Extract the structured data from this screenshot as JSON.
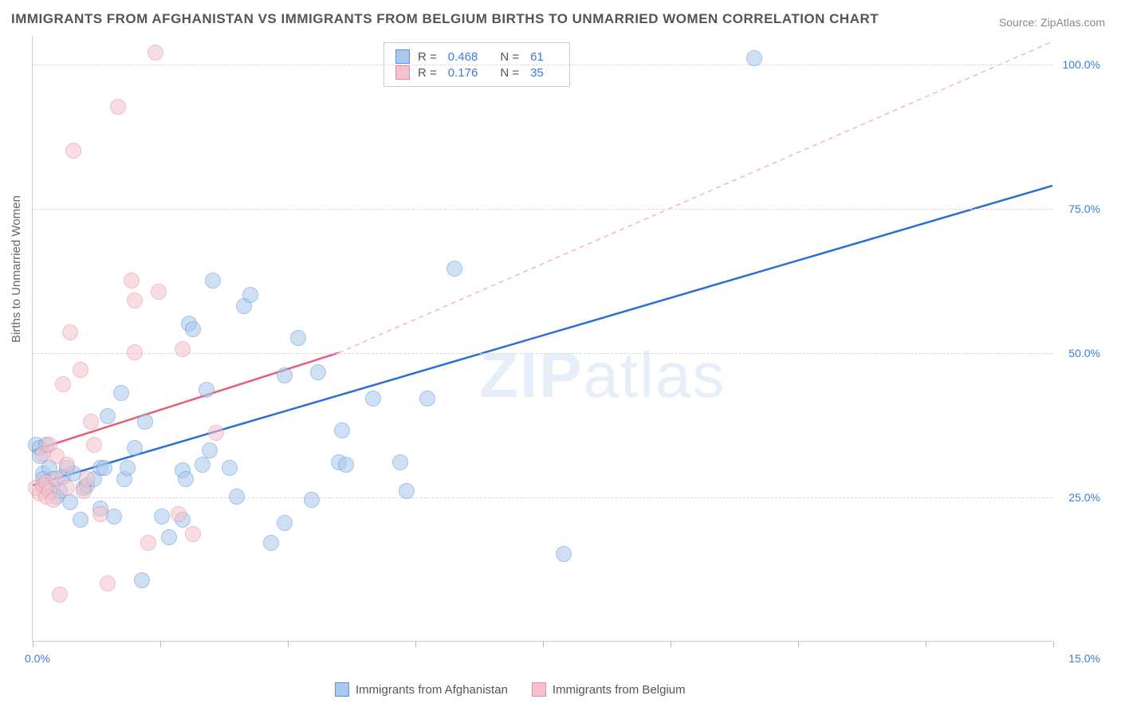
{
  "title": "IMMIGRANTS FROM AFGHANISTAN VS IMMIGRANTS FROM BELGIUM BIRTHS TO UNMARRIED WOMEN CORRELATION CHART",
  "source_label": "Source:",
  "source_value": "ZipAtlas.com",
  "ylabel": "Births to Unmarried Women",
  "watermark_bold": "ZIP",
  "watermark_rest": "atlas",
  "chart": {
    "type": "scatter",
    "xlim": [
      0,
      15
    ],
    "ylim": [
      0,
      105
    ],
    "x_ticks_pct": [
      0,
      12.5,
      25,
      37.5,
      50,
      62.5,
      75,
      87.5,
      100
    ],
    "y_gridlines": [
      25,
      50,
      75,
      100
    ],
    "y_tick_labels": [
      "25.0%",
      "50.0%",
      "75.0%",
      "100.0%"
    ],
    "x_min_label": "0.0%",
    "x_max_label": "15.0%",
    "background_color": "#ffffff",
    "grid_color": "#d8d8d8",
    "axis_label_color": "#3b7dd8",
    "point_radius": 10,
    "series": [
      {
        "name": "Immigrants from Afghanistan",
        "fill": "#a8c8ec",
        "stroke": "#5a94d8",
        "fill_opacity": 0.55,
        "R": "0.468",
        "N": "61",
        "trend": {
          "x1": 0,
          "y1": 27,
          "x2": 15,
          "y2": 79,
          "stroke": "#2a6fd6",
          "width": 2.5,
          "dash": "none"
        },
        "trend_ext": {
          "x1": 4.5,
          "y1": 50,
          "x2": 15,
          "y2": 104,
          "stroke": "#f4b6c2",
          "width": 1.5,
          "dash": "6,5"
        },
        "points": [
          [
            0.05,
            34
          ],
          [
            0.1,
            33.5
          ],
          [
            0.1,
            32
          ],
          [
            0.15,
            29
          ],
          [
            0.15,
            28
          ],
          [
            0.2,
            26.5
          ],
          [
            0.2,
            34
          ],
          [
            0.25,
            30
          ],
          [
            0.3,
            28
          ],
          [
            0.35,
            25
          ],
          [
            0.4,
            26
          ],
          [
            0.45,
            28.5
          ],
          [
            0.5,
            30
          ],
          [
            0.55,
            24
          ],
          [
            0.6,
            29
          ],
          [
            0.7,
            21
          ],
          [
            0.75,
            26.5
          ],
          [
            0.8,
            27
          ],
          [
            0.9,
            28
          ],
          [
            1.0,
            23
          ],
          [
            1.0,
            30
          ],
          [
            1.05,
            30
          ],
          [
            1.1,
            39
          ],
          [
            1.2,
            21.5
          ],
          [
            1.3,
            43
          ],
          [
            1.35,
            28
          ],
          [
            1.4,
            30
          ],
          [
            1.5,
            33.5
          ],
          [
            1.6,
            10.5
          ],
          [
            1.65,
            38
          ],
          [
            1.9,
            21.5
          ],
          [
            2.0,
            18
          ],
          [
            2.2,
            29.5
          ],
          [
            2.2,
            21
          ],
          [
            2.25,
            28
          ],
          [
            2.3,
            55
          ],
          [
            2.35,
            54
          ],
          [
            2.5,
            30.5
          ],
          [
            2.55,
            43.5
          ],
          [
            2.6,
            33
          ],
          [
            2.65,
            62.5
          ],
          [
            2.9,
            30
          ],
          [
            3.0,
            25
          ],
          [
            3.1,
            58
          ],
          [
            3.2,
            60
          ],
          [
            3.5,
            17
          ],
          [
            3.7,
            46
          ],
          [
            3.7,
            20.5
          ],
          [
            3.9,
            52.5
          ],
          [
            4.1,
            24.5
          ],
          [
            4.2,
            46.5
          ],
          [
            4.5,
            31
          ],
          [
            4.55,
            36.5
          ],
          [
            4.6,
            30.5
          ],
          [
            5.0,
            42
          ],
          [
            5.4,
            31
          ],
          [
            5.5,
            26
          ],
          [
            5.8,
            42
          ],
          [
            6.2,
            64.5
          ],
          [
            7.8,
            15
          ],
          [
            10.6,
            101
          ]
        ]
      },
      {
        "name": "Immigrants from Belgium",
        "fill": "#f4c2cc",
        "stroke": "#e88ba0",
        "fill_opacity": 0.55,
        "R": "0.176",
        "N": "35",
        "trend": {
          "x1": 0,
          "y1": 33,
          "x2": 4.5,
          "y2": 50,
          "stroke": "#e85d7a",
          "width": 2.5,
          "dash": "none"
        },
        "points": [
          [
            0.05,
            26.5
          ],
          [
            0.1,
            25.5
          ],
          [
            0.15,
            27
          ],
          [
            0.15,
            32.5
          ],
          [
            0.2,
            25
          ],
          [
            0.2,
            27.5
          ],
          [
            0.25,
            34
          ],
          [
            0.25,
            26
          ],
          [
            0.3,
            24.5
          ],
          [
            0.35,
            28
          ],
          [
            0.35,
            32
          ],
          [
            0.4,
            8
          ],
          [
            0.45,
            44.5
          ],
          [
            0.5,
            30.5
          ],
          [
            0.5,
            26.5
          ],
          [
            0.55,
            53.5
          ],
          [
            0.6,
            85
          ],
          [
            0.7,
            47
          ],
          [
            0.75,
            26
          ],
          [
            0.8,
            28
          ],
          [
            0.85,
            38
          ],
          [
            0.9,
            34
          ],
          [
            1.0,
            22
          ],
          [
            1.1,
            10
          ],
          [
            1.25,
            92.5
          ],
          [
            1.45,
            62.5
          ],
          [
            1.5,
            50
          ],
          [
            1.5,
            59
          ],
          [
            1.7,
            17
          ],
          [
            1.8,
            102
          ],
          [
            1.85,
            60.5
          ],
          [
            2.15,
            22
          ],
          [
            2.2,
            50.5
          ],
          [
            2.35,
            18.5
          ],
          [
            2.7,
            36
          ]
        ]
      }
    ]
  },
  "legend_top": {
    "r_label": "R =",
    "n_label": "N ="
  }
}
